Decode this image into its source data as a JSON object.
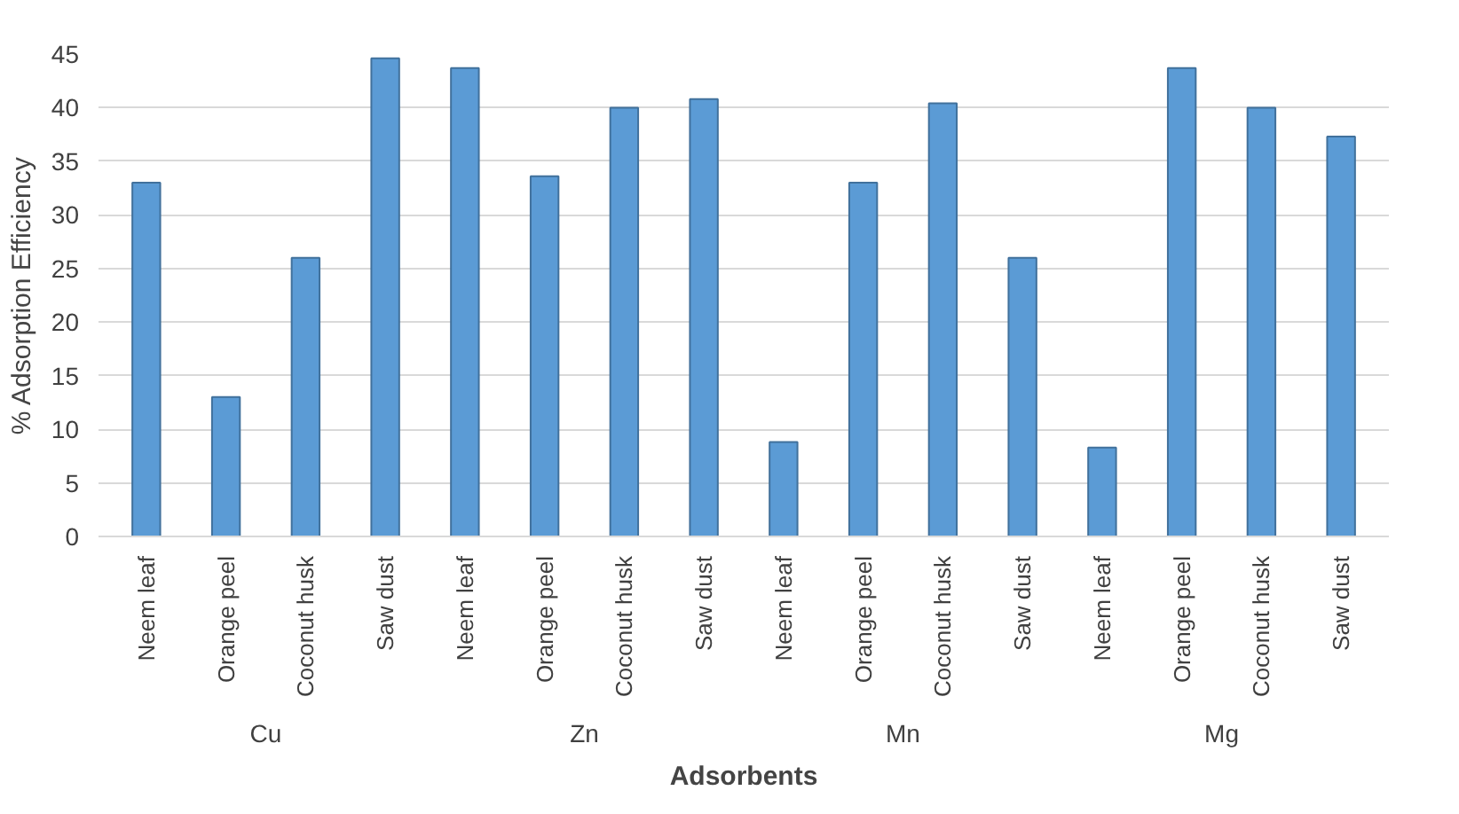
{
  "chart_data": {
    "type": "bar",
    "xlabel": "Adsorbents",
    "ylabel": "% Adsorption Efficiency",
    "categories": [
      "Neem leaf",
      "Orange peel",
      "Coconut husk",
      "Saw dust",
      "Neem leaf",
      "Orange peel",
      "Coconut husk",
      "Saw dust",
      "Neem leaf",
      "Orange peel",
      "Coconut husk",
      "Saw dust",
      "Neem leaf",
      "Orange peel",
      "Coconut husk",
      "Saw dust"
    ],
    "values": [
      33,
      13,
      26,
      44.6,
      43.7,
      33.6,
      40,
      40.8,
      8.8,
      33,
      40.4,
      26,
      8.3,
      43.7,
      40,
      37.3
    ],
    "color": "#5b9bd5",
    "ylim": [
      0,
      45
    ],
    "yticks": [
      0,
      5,
      10,
      15,
      20,
      25,
      30,
      35,
      40,
      45
    ],
    "grid": "y",
    "annotations": [
      "Cu",
      "Zn",
      "Mn",
      "Mg"
    ]
  }
}
